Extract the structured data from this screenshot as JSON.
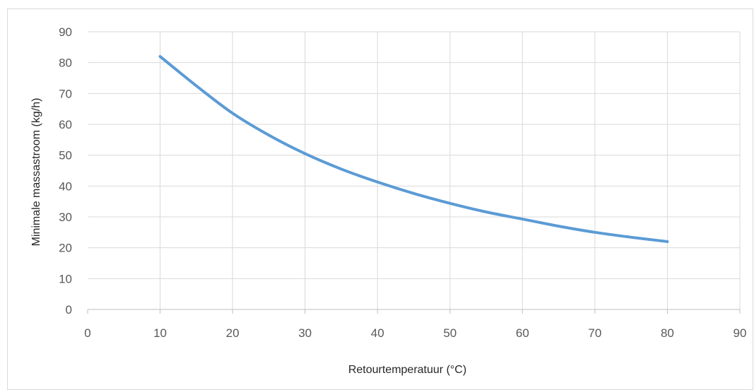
{
  "chart_data": {
    "type": "scatter",
    "title": "",
    "xlabel": "Retourtemperatuur (°C)",
    "ylabel": "Minimale massastroom (kg/h)",
    "xlim": [
      0,
      90
    ],
    "ylim": [
      0,
      90
    ],
    "xticks": [
      "0",
      "10",
      "20",
      "30",
      "40",
      "50",
      "60",
      "70",
      "80",
      "90"
    ],
    "yticks": [
      "0",
      "10",
      "20",
      "30",
      "40",
      "50",
      "60",
      "70",
      "80",
      "90"
    ],
    "grid": true,
    "legend": "none",
    "series": [
      {
        "color": "#5b9bd5",
        "line": "smooth",
        "x": [
          10,
          15,
          20,
          25,
          30,
          35,
          40,
          45,
          50,
          55,
          60,
          65,
          70,
          75,
          80
        ],
        "y": [
          82,
          72.5,
          63.6,
          56.5,
          50.5,
          45.5,
          41.3,
          37.6,
          34.4,
          31.6,
          29.3,
          27,
          25,
          23.4,
          22
        ]
      }
    ]
  }
}
